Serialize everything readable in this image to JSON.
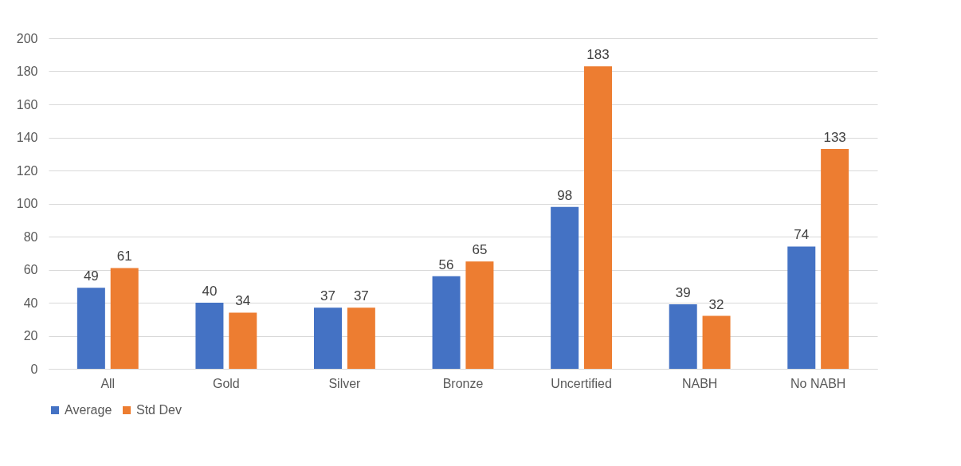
{
  "chart_data": {
    "type": "bar",
    "categories": [
      "All",
      "Gold",
      "Silver",
      "Bronze",
      "Uncertified",
      "NABH",
      "No NABH"
    ],
    "series": [
      {
        "name": "Average",
        "color": "#4472c4",
        "values": [
          49,
          40,
          37,
          56,
          98,
          39,
          74
        ]
      },
      {
        "name": "Std Dev",
        "color": "#ed7d31",
        "values": [
          61,
          34,
          37,
          65,
          183,
          32,
          133
        ]
      }
    ],
    "ylim": [
      0,
      200
    ],
    "yticks": [
      0,
      20,
      40,
      60,
      80,
      100,
      120,
      140,
      160,
      180,
      200
    ],
    "grid": "y",
    "legend": "bottom",
    "data_labels": true
  }
}
